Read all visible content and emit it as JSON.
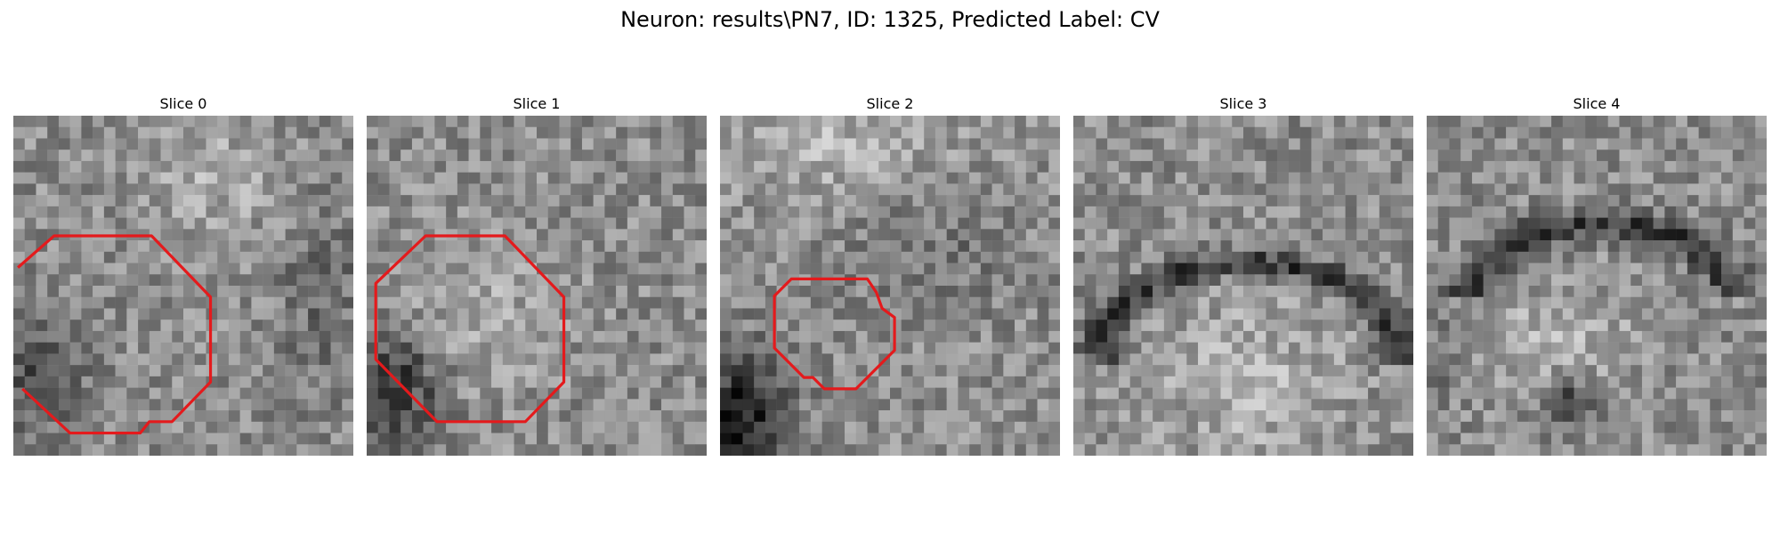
{
  "figure": {
    "suptitle": "Neuron: results\\PN7, ID: 1325, Predicted Label: CV",
    "contour_color": "#e41a1c",
    "colormap": "gray",
    "slices": [
      {
        "title": "Slice 0",
        "has_contour": true,
        "seed": 11,
        "pattern": "blob-lowerleft-dark"
      },
      {
        "title": "Slice 1",
        "has_contour": true,
        "seed": 23,
        "pattern": "blob-left-dark"
      },
      {
        "title": "Slice 2",
        "has_contour": true,
        "seed": 37,
        "pattern": "dark-corner-bottomleft"
      },
      {
        "title": "Slice 3",
        "has_contour": false,
        "seed": 41,
        "pattern": "dark-arc-middle"
      },
      {
        "title": "Slice 4",
        "has_contour": false,
        "seed": 53,
        "pattern": "dark-band-top-arc"
      }
    ]
  }
}
